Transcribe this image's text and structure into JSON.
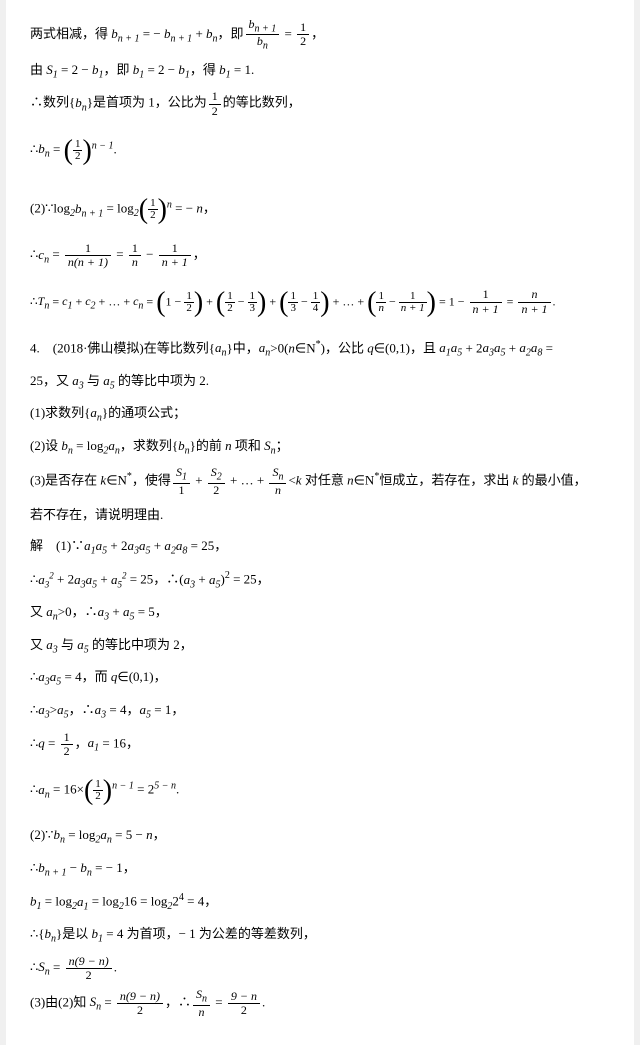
{
  "doc": {
    "background": "#ffffff",
    "text_color": "#000000",
    "font_size": 13,
    "lines": {
      "l1a": "两式相减，得 ",
      "l1b": "，即",
      "l1_expr1": "b",
      "l1_eq": " = − ",
      "l1_plus": " + ",
      "l1_num": "b",
      "l1_den": "b",
      "l1_half_num": "1",
      "l1_half_den": "2",
      "l1_comma": "，",
      "l2a": "由 ",
      "l2b": " = 2 − ",
      "l2c": "，即 ",
      "l2d": "，得 ",
      "l2e": " = 1.",
      "l3a": "∴数列{",
      "l3b": "}是首项为 1，公比为",
      "l3c": "的等比数列，",
      "l4a": "∴",
      "l4b": " = ",
      "l4exp": "n − 1",
      "l4dot": ".",
      "l5a": "(2)∵log",
      "l5b": " = log",
      "l5c": " = − ",
      "l5d": "，",
      "l6a": "∴",
      "l6b": " = ",
      "l6c": " = ",
      "l6d": " − ",
      "l6e": "，",
      "l6_num1": "1",
      "l6_den1a": "n",
      "l6_den1b": "(n + 1)",
      "l6_num2": "1",
      "l6_den2": "n",
      "l6_num3": "1",
      "l6_den3": "n + 1",
      "l7a": "∴",
      "l7b": " = ",
      "l7c": " + ",
      "l7d": " + … + ",
      "l7e": " = ",
      "l7f": " = 1 − ",
      "l7g": " = ",
      "l7dot": ".",
      "l8a": "4.　(2018·佛山模拟)在等比数列{",
      "l8b": "}中，",
      "l8c": ">0(",
      "l8d": "∈N",
      "l8e": ")，公比 ",
      "l8f": "∈(0,1)，且 ",
      "l8g": " + 2",
      "l8h": " + ",
      "l8i": " = ",
      "l9a": "25，又 ",
      "l9b": " 与 ",
      "l9c": " 的等比中项为 2.",
      "l10": "(1)求数列{",
      "l10b": "}的通项公式；",
      "l11a": "(2)设 ",
      "l11b": " = log",
      "l11c": "，求数列{",
      "l11d": "}的前 ",
      "l11e": " 项和 ",
      "l11f": "；",
      "l12a": "(3)是否存在 ",
      "l12b": "∈N",
      "l12c": "，使得",
      "l12d": " + ",
      "l12e": " + … + ",
      "l12f": "<",
      "l12g": " 对任意 ",
      "l12h": "∈N",
      "l12i": "恒成立，若存在，求出 ",
      "l12j": " 的最小值，",
      "l13": "若不存在，请说明理由.",
      "l14a": "解　(1)∵",
      "l14b": " + 2",
      "l14c": " + ",
      "l14d": " = 25，",
      "l15a": "∴",
      "l15b": " + 2",
      "l15c": " + ",
      "l15d": " = 25，∴(",
      "l15e": " + ",
      "l15f": ")",
      "l15g": " = 25，",
      "l16a": "又 ",
      "l16b": ">0，∴",
      "l16c": " + ",
      "l16d": " = 5，",
      "l17a": "又 ",
      "l17b": " 与 ",
      "l17c": " 的等比中项为 2，",
      "l18a": "∴",
      "l18b": " = 4，而 ",
      "l18c": "∈(0,1)，",
      "l19a": "∴",
      "l19b": ">",
      "l19c": "，∴",
      "l19d": " = 4，",
      "l19e": " = 1，",
      "l20a": "∴",
      "l20b": " = ",
      "l20c": "，",
      "l20d": " = 16，",
      "l21a": "∴",
      "l21b": " = 16×",
      "l21c": " = 2",
      "l21exp": "5 − n",
      "l21dot": ".",
      "l22a": "(2)∵",
      "l22b": " = log",
      "l22c": " = 5 − ",
      "l22d": "，",
      "l23a": "∴",
      "l23b": " − ",
      "l23c": " = − 1，",
      "l24a": "b",
      "l24b": " = log",
      "l24c": " = log",
      "l24d": "16 = log",
      "l24e": "2",
      "l24f": " = 4，",
      "l25a": "∴{",
      "l25b": "}是以 ",
      "l25c": " = 4 为首项，− 1 为公差的等差数列，",
      "l26a": "∴",
      "l26b": " = ",
      "l26_num": "n(9 − n)",
      "l26_den": "2",
      "l26dot": ".",
      "l27a": "(3)由(2)知 ",
      "l27b": " = ",
      "l27c": "，∴",
      "l27d": " = ",
      "l27_num2": "9 − n",
      "l27_den2": "2",
      "l27dot": "."
    },
    "vars": {
      "b": "b",
      "n": "n",
      "np1": "n + 1",
      "S": "S",
      "c": "c",
      "T": "T",
      "a": "a",
      "q": "q",
      "k": "k",
      "N": "N",
      "star": "*",
      "one": "1",
      "two": "2",
      "three": "3",
      "four": "4",
      "five": "5",
      "eight": "8"
    }
  }
}
